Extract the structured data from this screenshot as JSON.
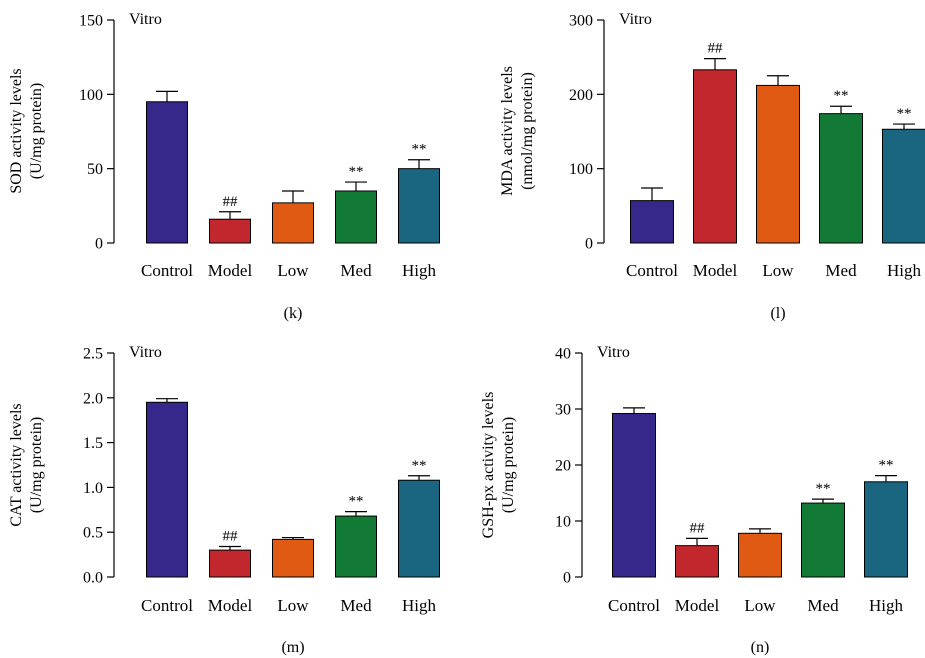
{
  "chart_data": [
    {
      "type": "bar",
      "panel_label": "(k)",
      "annotation": "Vitro",
      "ylabel_lines": [
        "SOD activity levels",
        "(U/mg protein)"
      ],
      "categories": [
        "Control",
        "Model",
        "Low",
        "Med",
        "High"
      ],
      "values": [
        95,
        16,
        27,
        35,
        50
      ],
      "errors": [
        7,
        5,
        8,
        6,
        6
      ],
      "significance": [
        "",
        "##",
        "",
        "**",
        "**"
      ],
      "ylim": [
        0,
        150
      ],
      "yticks": [
        0,
        50,
        100,
        150
      ],
      "ytick_labels": [
        "0",
        "50",
        "100",
        "150"
      ],
      "colors": [
        "#35288a",
        "#c1272d",
        "#e05a14",
        "#127a35",
        "#1a6680"
      ]
    },
    {
      "type": "bar",
      "panel_label": "(l)",
      "annotation": "Vitro",
      "ylabel_lines": [
        "MDA activity levels",
        "(nmol/mg protein)"
      ],
      "categories": [
        "Control",
        "Model",
        "Low",
        "Med",
        "High"
      ],
      "values": [
        57,
        233,
        212,
        174,
        153
      ],
      "errors": [
        17,
        15,
        13,
        10,
        7
      ],
      "significance": [
        "",
        "##",
        "",
        "**",
        "**"
      ],
      "ylim": [
        0,
        300
      ],
      "yticks": [
        0,
        100,
        200,
        300
      ],
      "ytick_labels": [
        "0",
        "100",
        "200",
        "300"
      ],
      "colors": [
        "#35288a",
        "#c1272d",
        "#e05a14",
        "#127a35",
        "#1a6680"
      ]
    },
    {
      "type": "bar",
      "panel_label": "(m)",
      "annotation": "Vitro",
      "ylabel_lines": [
        "CAT activity levels",
        "(U/mg protein)"
      ],
      "categories": [
        "Control",
        "Model",
        "Low",
        "Med",
        "High"
      ],
      "values": [
        1.95,
        0.3,
        0.42,
        0.68,
        1.08
      ],
      "errors": [
        0.04,
        0.04,
        0.02,
        0.05,
        0.05
      ],
      "significance": [
        "",
        "##",
        "",
        "**",
        "**"
      ],
      "ylim": [
        0,
        2.5
      ],
      "yticks": [
        0,
        0.5,
        1,
        1.5,
        2,
        2.5
      ],
      "ytick_labels": [
        "0.0",
        "0.5",
        "1.0",
        "1.5",
        "2.0",
        "2.5"
      ],
      "colors": [
        "#35288a",
        "#c1272d",
        "#e05a14",
        "#127a35",
        "#1a6680"
      ]
    },
    {
      "type": "bar",
      "panel_label": "(n)",
      "annotation": "Vitro",
      "ylabel_lines": [
        "GSH-px activity levels",
        "(U/mg protein)"
      ],
      "categories": [
        "Control",
        "Model",
        "Low",
        "Med",
        "High"
      ],
      "values": [
        29.2,
        5.6,
        7.8,
        13.2,
        17
      ],
      "errors": [
        1,
        1.3,
        0.8,
        0.7,
        1.1
      ],
      "significance": [
        "",
        "##",
        "",
        "**",
        "**"
      ],
      "ylim": [
        0,
        40
      ],
      "yticks": [
        0,
        10,
        20,
        30,
        40
      ],
      "ytick_labels": [
        "0",
        "10",
        "20",
        "30",
        "40"
      ],
      "colors": [
        "#35288a",
        "#c1272d",
        "#e05a14",
        "#127a35",
        "#1a6680"
      ]
    }
  ]
}
